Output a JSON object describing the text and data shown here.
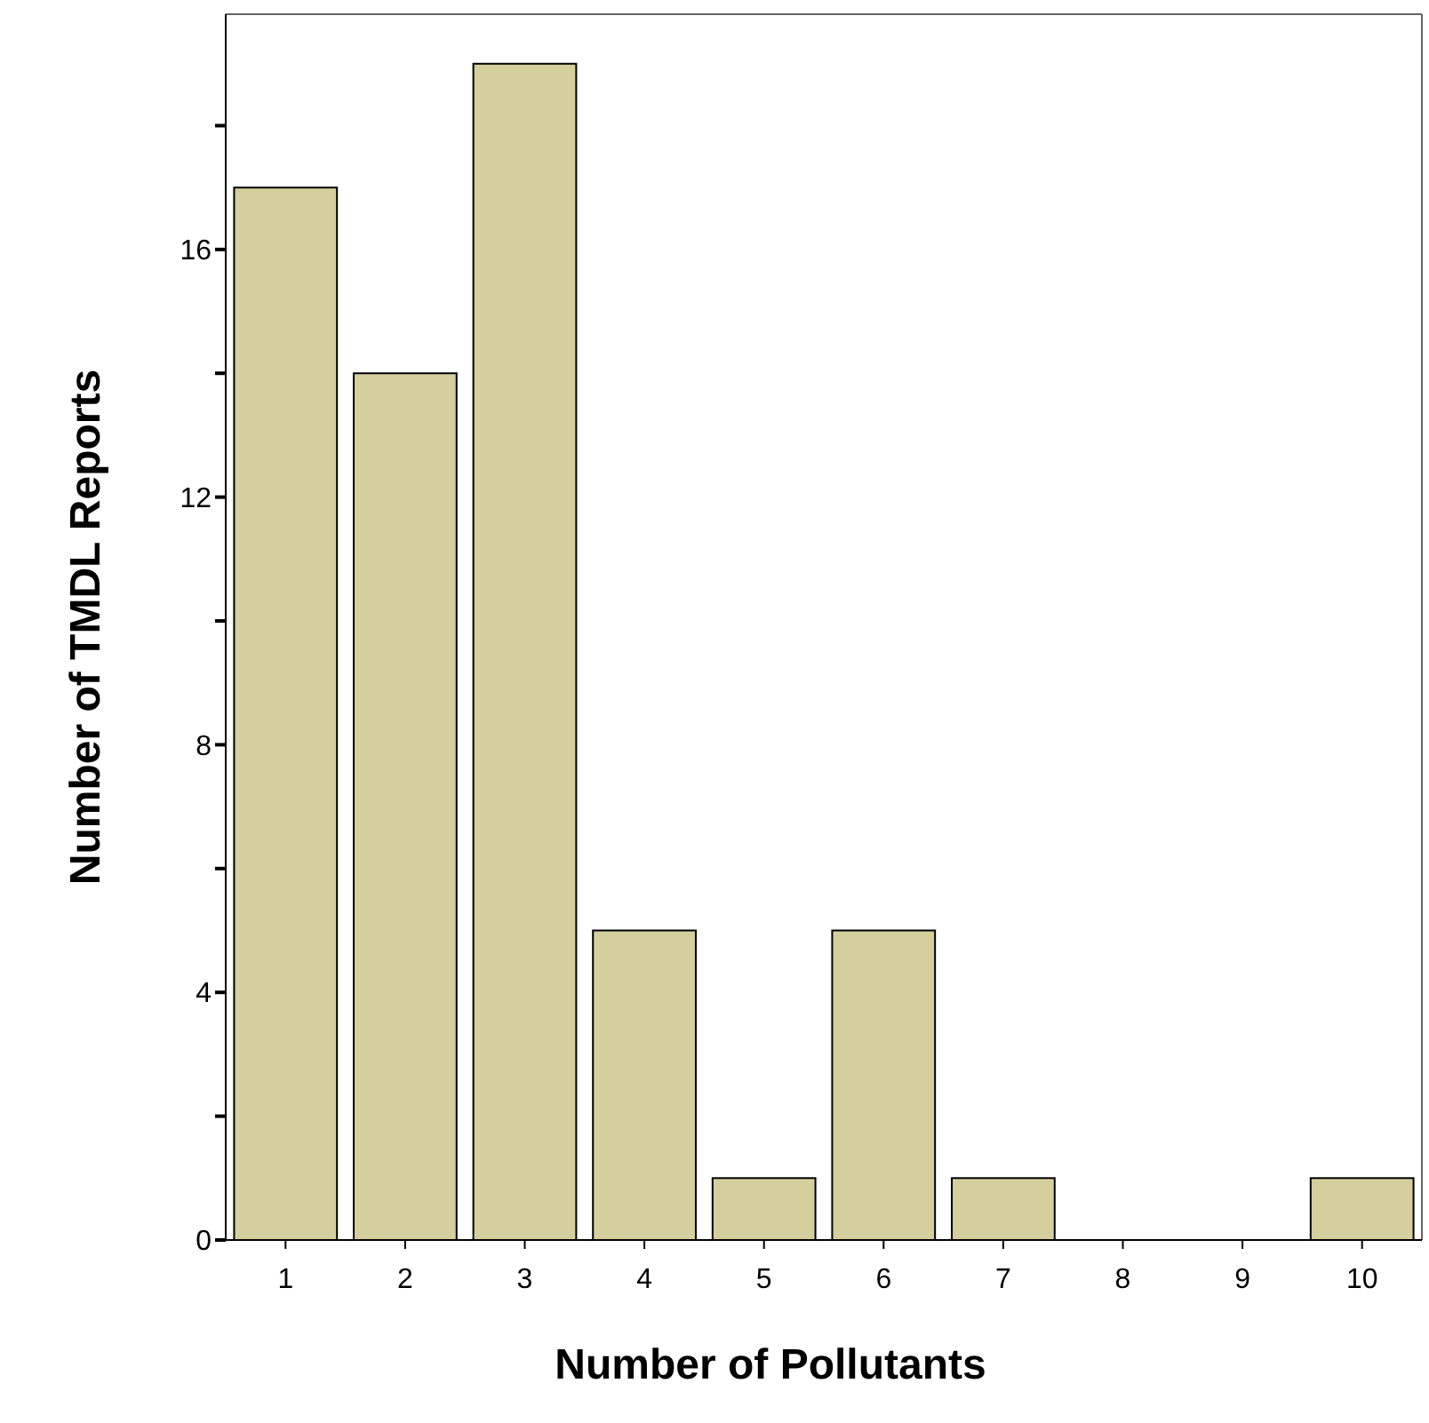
{
  "chart_data": {
    "type": "bar",
    "xlabel": "Number of Pollutants",
    "ylabel": "Number of TMDL Reports",
    "categories": [
      "1",
      "2",
      "3",
      "4",
      "5",
      "6",
      "7",
      "8",
      "9",
      "10"
    ],
    "values": [
      17,
      14,
      19,
      5,
      1,
      5,
      1,
      0,
      0,
      1
    ],
    "color": "#d4cf9c",
    "ylim": [
      0,
      19.8
    ],
    "yticks": [
      0,
      {
        "value": 2,
        "label": null
      },
      4,
      {
        "value": 6,
        "label": null
      },
      8,
      {
        "value": 10,
        "label": null
      },
      12,
      {
        "value": 14,
        "label": null
      },
      16,
      {
        "value": 18,
        "label": null
      }
    ],
    "grid": false
  }
}
